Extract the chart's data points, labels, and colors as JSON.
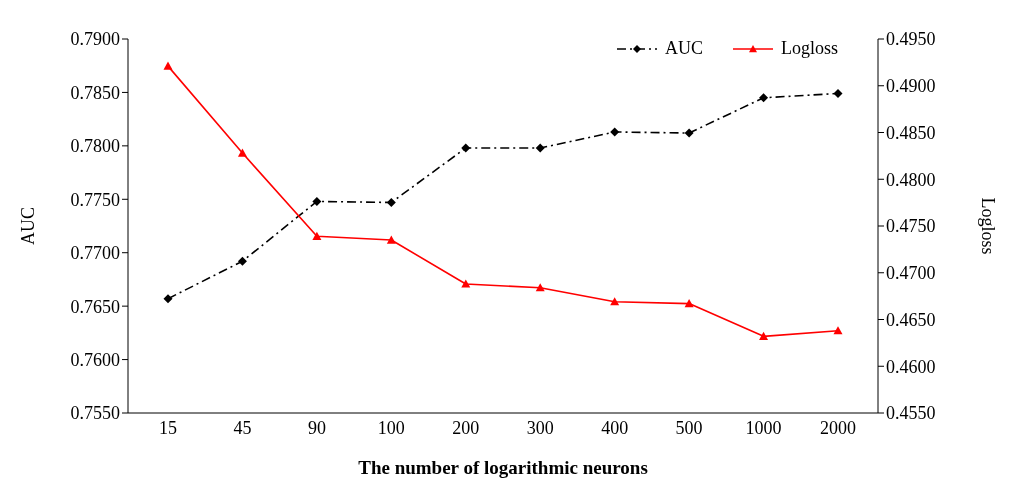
{
  "chart_data": {
    "type": "line",
    "xlabel": "The number of logarithmic neurons",
    "ylabel": "AUC",
    "y2label": "Logloss",
    "categories": [
      "15",
      "45",
      "90",
      "100",
      "200",
      "300",
      "400",
      "500",
      "1000",
      "2000"
    ],
    "series": [
      {
        "name": "AUC",
        "color": "#000000",
        "marker": "diamond",
        "line_style": "dashed",
        "values": [
          0.7657,
          0.7692,
          0.7748,
          0.7747,
          0.7798,
          0.7798,
          0.7813,
          0.7812,
          0.7845,
          0.7849
        ]
      },
      {
        "name": "Logloss",
        "color": "#ff0000",
        "marker": "triangle",
        "line_style": "solid",
        "axis": "y2",
        "values": [
          0.4921,
          0.4828,
          0.4739,
          0.4735,
          0.4688,
          0.4684,
          0.4669,
          0.4667,
          0.4632,
          0.4638
        ]
      }
    ],
    "ylim": [
      0.755,
      0.79
    ],
    "yticks": [
      {
        "value": 0.755,
        "label": "0.7550"
      },
      {
        "value": 0.76,
        "label": "0.7600"
      },
      {
        "value": 0.765,
        "label": "0.7650"
      },
      {
        "value": 0.77,
        "label": "0.7700"
      },
      {
        "value": 0.775,
        "label": "0.7750"
      },
      {
        "value": 0.78,
        "label": "0.7800"
      },
      {
        "value": 0.785,
        "label": "0.7850"
      },
      {
        "value": 0.79,
        "label": "0.7900"
      }
    ],
    "y2lim": [
      0.455,
      0.495
    ],
    "y2ticks": [
      {
        "value": 0.455,
        "label": "0.4550"
      },
      {
        "value": 0.46,
        "label": "0.4600"
      },
      {
        "value": 0.465,
        "label": "0.4650"
      },
      {
        "value": 0.47,
        "label": "0.4700"
      },
      {
        "value": 0.475,
        "label": "0.4750"
      },
      {
        "value": 0.48,
        "label": "0.4800"
      },
      {
        "value": 0.485,
        "label": "0.4850"
      },
      {
        "value": 0.49,
        "label": "0.4900"
      },
      {
        "value": 0.495,
        "label": "0.4950"
      }
    ],
    "grid": false,
    "legend": "top right"
  }
}
